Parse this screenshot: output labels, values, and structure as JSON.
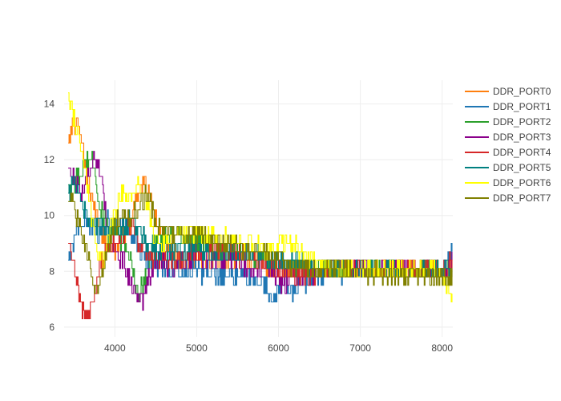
{
  "chart_data": {
    "type": "line",
    "title": "",
    "xlabel": "",
    "ylabel": "",
    "xlim": [
      3380,
      8130
    ],
    "ylim": [
      5.65,
      14.85
    ],
    "xticks": [
      4000,
      5000,
      6000,
      7000,
      8000
    ],
    "yticks": [
      6,
      8,
      10,
      12,
      14
    ],
    "grid": true,
    "legend_position": "right",
    "series": [
      {
        "name": "DDR_PORT0",
        "color": "#ff7f0e",
        "noise": 0.35,
        "anchors": [
          [
            3430,
            12.8
          ],
          [
            3480,
            13.2
          ],
          [
            3550,
            13.4
          ],
          [
            3620,
            12.2
          ],
          [
            3700,
            10.8
          ],
          [
            3800,
            9.6
          ],
          [
            3900,
            9.0
          ],
          [
            4000,
            8.8
          ],
          [
            4100,
            9.2
          ],
          [
            4200,
            9.6
          ],
          [
            4250,
            10.6
          ],
          [
            4300,
            11.0
          ],
          [
            4350,
            11.2
          ],
          [
            4450,
            10.6
          ],
          [
            4500,
            9.8
          ],
          [
            4600,
            9.2
          ],
          [
            4700,
            8.6
          ],
          [
            4800,
            8.3
          ],
          [
            4900,
            8.2
          ],
          [
            5000,
            8.5
          ],
          [
            5200,
            8.3
          ],
          [
            5400,
            8.4
          ],
          [
            5800,
            8.3
          ],
          [
            6200,
            8.0
          ],
          [
            6600,
            8.0
          ],
          [
            7000,
            8.0
          ],
          [
            7400,
            8.0
          ],
          [
            7800,
            8.0
          ],
          [
            8120,
            8.0
          ]
        ]
      },
      {
        "name": "DDR_PORT1",
        "color": "#1f77b4",
        "noise": 0.35,
        "anchors": [
          [
            3430,
            8.4
          ],
          [
            3470,
            8.6
          ],
          [
            3520,
            9.4
          ],
          [
            3600,
            9.8
          ],
          [
            3700,
            9.6
          ],
          [
            3800,
            9.4
          ],
          [
            3900,
            9.8
          ],
          [
            4000,
            9.8
          ],
          [
            4100,
            9.6
          ],
          [
            4200,
            9.2
          ],
          [
            4300,
            8.8
          ],
          [
            4400,
            8.4
          ],
          [
            4600,
            8.2
          ],
          [
            4800,
            8.0
          ],
          [
            5000,
            8.0
          ],
          [
            5300,
            7.9
          ],
          [
            5600,
            7.8
          ],
          [
            5800,
            7.6
          ],
          [
            5950,
            7.0
          ],
          [
            6050,
            7.6
          ],
          [
            6150,
            7.2
          ],
          [
            6300,
            7.6
          ],
          [
            6500,
            7.9
          ],
          [
            7000,
            8.0
          ],
          [
            7500,
            8.0
          ],
          [
            8000,
            8.0
          ],
          [
            8120,
            8.8
          ]
        ]
      },
      {
        "name": "DDR_PORT2",
        "color": "#2ca02c",
        "noise": 0.35,
        "anchors": [
          [
            3430,
            11.0
          ],
          [
            3500,
            11.2
          ],
          [
            3580,
            11.4
          ],
          [
            3650,
            12.0
          ],
          [
            3700,
            12.4
          ],
          [
            3750,
            11.6
          ],
          [
            3800,
            10.4
          ],
          [
            3900,
            9.6
          ],
          [
            4000,
            9.4
          ],
          [
            4100,
            9.0
          ],
          [
            4200,
            8.4
          ],
          [
            4250,
            7.4
          ],
          [
            4300,
            7.2
          ],
          [
            4350,
            7.6
          ],
          [
            4400,
            8.0
          ],
          [
            4500,
            9.2
          ],
          [
            4700,
            9.2
          ],
          [
            5000,
            9.0
          ],
          [
            5300,
            8.8
          ],
          [
            5600,
            8.6
          ],
          [
            6000,
            8.2
          ],
          [
            6400,
            8.2
          ],
          [
            6800,
            8.0
          ],
          [
            7200,
            8.0
          ],
          [
            7600,
            8.0
          ],
          [
            8000,
            8.0
          ],
          [
            8120,
            8.0
          ]
        ]
      },
      {
        "name": "DDR_PORT3",
        "color": "#8b008b",
        "noise": 0.35,
        "anchors": [
          [
            3430,
            11.8
          ],
          [
            3500,
            11.4
          ],
          [
            3580,
            10.8
          ],
          [
            3650,
            11.2
          ],
          [
            3700,
            11.8
          ],
          [
            3750,
            12.2
          ],
          [
            3800,
            11.8
          ],
          [
            3850,
            10.8
          ],
          [
            3900,
            9.6
          ],
          [
            4000,
            8.8
          ],
          [
            4100,
            8.4
          ],
          [
            4200,
            7.6
          ],
          [
            4300,
            7.0
          ],
          [
            4350,
            7.0
          ],
          [
            4400,
            7.6
          ],
          [
            4500,
            8.4
          ],
          [
            4700,
            8.2
          ],
          [
            5000,
            8.6
          ],
          [
            5300,
            8.4
          ],
          [
            5600,
            8.2
          ],
          [
            5900,
            8.0
          ],
          [
            6050,
            7.6
          ],
          [
            6200,
            7.8
          ],
          [
            6500,
            8.0
          ],
          [
            7000,
            8.0
          ],
          [
            7500,
            8.0
          ],
          [
            8000,
            8.0
          ],
          [
            8120,
            8.4
          ]
        ]
      },
      {
        "name": "DDR_PORT4",
        "color": "#d62728",
        "noise": 0.35,
        "anchors": [
          [
            3430,
            8.8
          ],
          [
            3480,
            8.6
          ],
          [
            3520,
            8.0
          ],
          [
            3560,
            7.2
          ],
          [
            3600,
            6.6
          ],
          [
            3650,
            6.4
          ],
          [
            3700,
            6.6
          ],
          [
            3750,
            7.2
          ],
          [
            3800,
            7.8
          ],
          [
            3850,
            8.4
          ],
          [
            3900,
            8.8
          ],
          [
            4000,
            9.0
          ],
          [
            4100,
            9.4
          ],
          [
            4200,
            9.6
          ],
          [
            4300,
            9.0
          ],
          [
            4400,
            8.6
          ],
          [
            4500,
            8.4
          ],
          [
            4700,
            8.4
          ],
          [
            4900,
            8.6
          ],
          [
            5100,
            8.6
          ],
          [
            5300,
            8.8
          ],
          [
            5500,
            8.6
          ],
          [
            5800,
            8.4
          ],
          [
            6000,
            8.0
          ],
          [
            6200,
            7.8
          ],
          [
            6500,
            8.0
          ],
          [
            7000,
            8.0
          ],
          [
            7500,
            8.0
          ],
          [
            8000,
            8.0
          ],
          [
            8120,
            8.4
          ]
        ]
      },
      {
        "name": "DDR_PORT5",
        "color": "#008080",
        "noise": 0.35,
        "anchors": [
          [
            3430,
            10.8
          ],
          [
            3500,
            11.2
          ],
          [
            3560,
            10.8
          ],
          [
            3620,
            10.2
          ],
          [
            3700,
            9.8
          ],
          [
            3800,
            9.6
          ],
          [
            3900,
            9.4
          ],
          [
            4000,
            9.4
          ],
          [
            4100,
            9.6
          ],
          [
            4200,
            9.8
          ],
          [
            4300,
            9.4
          ],
          [
            4400,
            9.0
          ],
          [
            4500,
            8.8
          ],
          [
            4700,
            8.8
          ],
          [
            5000,
            8.8
          ],
          [
            5300,
            8.6
          ],
          [
            5600,
            8.6
          ],
          [
            6000,
            8.4
          ],
          [
            6400,
            8.2
          ],
          [
            6800,
            8.0
          ],
          [
            7200,
            8.0
          ],
          [
            7600,
            8.0
          ],
          [
            8000,
            8.0
          ],
          [
            8120,
            8.0
          ]
        ]
      },
      {
        "name": "DDR_PORT6",
        "color": "#ffff00",
        "noise": 0.35,
        "anchors": [
          [
            3430,
            14.2
          ],
          [
            3480,
            13.8
          ],
          [
            3520,
            13.2
          ],
          [
            3560,
            12.6
          ],
          [
            3600,
            12.0
          ],
          [
            3650,
            11.2
          ],
          [
            3700,
            10.2
          ],
          [
            3750,
            9.2
          ],
          [
            3800,
            8.6
          ],
          [
            3850,
            8.4
          ],
          [
            3900,
            8.8
          ],
          [
            3950,
            9.6
          ],
          [
            4000,
            10.2
          ],
          [
            4100,
            10.8
          ],
          [
            4200,
            10.6
          ],
          [
            4280,
            11.2
          ],
          [
            4350,
            11.0
          ],
          [
            4400,
            10.4
          ],
          [
            4450,
            9.4
          ],
          [
            4550,
            9.0
          ],
          [
            4700,
            9.2
          ],
          [
            5000,
            9.4
          ],
          [
            5300,
            9.2
          ],
          [
            5600,
            9.0
          ],
          [
            5900,
            8.8
          ],
          [
            6100,
            9.2
          ],
          [
            6300,
            8.6
          ],
          [
            6600,
            8.2
          ],
          [
            7000,
            8.0
          ],
          [
            7500,
            8.0
          ],
          [
            7900,
            8.0
          ],
          [
            8050,
            7.6
          ],
          [
            8120,
            7.1
          ]
        ]
      },
      {
        "name": "DDR_PORT7",
        "color": "#808000",
        "noise": 0.35,
        "anchors": [
          [
            3430,
            10.4
          ],
          [
            3480,
            10.6
          ],
          [
            3540,
            9.8
          ],
          [
            3600,
            9.2
          ],
          [
            3650,
            8.8
          ],
          [
            3700,
            8.2
          ],
          [
            3750,
            7.6
          ],
          [
            3800,
            7.4
          ],
          [
            3850,
            8.0
          ],
          [
            3900,
            8.8
          ],
          [
            4000,
            9.6
          ],
          [
            4100,
            10.0
          ],
          [
            4200,
            9.8
          ],
          [
            4300,
            10.4
          ],
          [
            4400,
            10.8
          ],
          [
            4450,
            10.2
          ],
          [
            4500,
            9.6
          ],
          [
            4700,
            9.4
          ],
          [
            5000,
            9.2
          ],
          [
            5300,
            9.0
          ],
          [
            5600,
            8.8
          ],
          [
            5900,
            8.6
          ],
          [
            6200,
            8.2
          ],
          [
            6500,
            8.0
          ],
          [
            7000,
            8.0
          ],
          [
            7500,
            7.9
          ],
          [
            8000,
            7.8
          ],
          [
            8120,
            7.8
          ]
        ]
      }
    ]
  }
}
